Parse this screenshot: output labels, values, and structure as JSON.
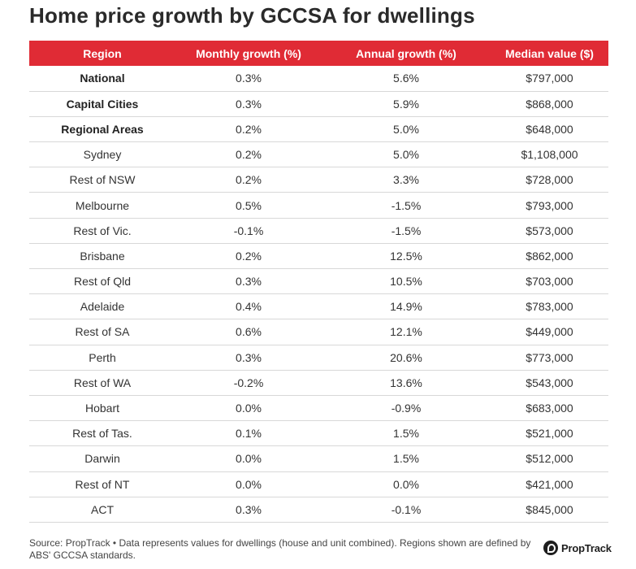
{
  "title": "Home price growth by GCCSA for dwellings",
  "table": {
    "headers": [
      "Region",
      "Monthly growth (%)",
      "Annual growth (%)",
      "Median value ($)"
    ],
    "rows": [
      {
        "region": "National",
        "monthly": "0.3%",
        "annual": "5.6%",
        "median": "$797,000",
        "bold": true
      },
      {
        "region": "Capital Cities",
        "monthly": "0.3%",
        "annual": "5.9%",
        "median": "$868,000",
        "bold": true
      },
      {
        "region": "Regional Areas",
        "monthly": "0.2%",
        "annual": "5.0%",
        "median": "$648,000",
        "bold": true
      },
      {
        "region": "Sydney",
        "monthly": "0.2%",
        "annual": "5.0%",
        "median": "$1,108,000"
      },
      {
        "region": "Rest of NSW",
        "monthly": "0.2%",
        "annual": "3.3%",
        "median": "$728,000"
      },
      {
        "region": "Melbourne",
        "monthly": "0.5%",
        "annual": "-1.5%",
        "median": "$793,000"
      },
      {
        "region": "Rest of Vic.",
        "monthly": "-0.1%",
        "annual": "-1.5%",
        "median": "$573,000"
      },
      {
        "region": "Brisbane",
        "monthly": "0.2%",
        "annual": "12.5%",
        "median": "$862,000"
      },
      {
        "region": "Rest of Qld",
        "monthly": "0.3%",
        "annual": "10.5%",
        "median": "$703,000"
      },
      {
        "region": "Adelaide",
        "monthly": "0.4%",
        "annual": "14.9%",
        "median": "$783,000"
      },
      {
        "region": "Rest of SA",
        "monthly": "0.6%",
        "annual": "12.1%",
        "median": "$449,000"
      },
      {
        "region": "Perth",
        "monthly": "0.3%",
        "annual": "20.6%",
        "median": "$773,000"
      },
      {
        "region": "Rest of WA",
        "monthly": "-0.2%",
        "annual": "13.6%",
        "median": "$543,000"
      },
      {
        "region": "Hobart",
        "monthly": "0.0%",
        "annual": "-0.9%",
        "median": "$683,000"
      },
      {
        "region": "Rest of Tas.",
        "monthly": "0.1%",
        "annual": "1.5%",
        "median": "$521,000"
      },
      {
        "region": "Darwin",
        "monthly": "0.0%",
        "annual": "1.5%",
        "median": "$512,000"
      },
      {
        "region": "Rest of NT",
        "monthly": "0.0%",
        "annual": "0.0%",
        "median": "$421,000"
      },
      {
        "region": "ACT",
        "monthly": "0.3%",
        "annual": "-0.1%",
        "median": "$845,000"
      }
    ]
  },
  "footer": {
    "source": "Source: PropTrack • Data represents values for dwellings (house and unit combined). Regions shown are defined by ABS' GCCSA standards.",
    "logo_text": "PropTrack",
    "logo_icon": "proptrack-logo-icon"
  },
  "colors": {
    "header_bg": "#e02b35",
    "header_text": "#ffffff"
  }
}
